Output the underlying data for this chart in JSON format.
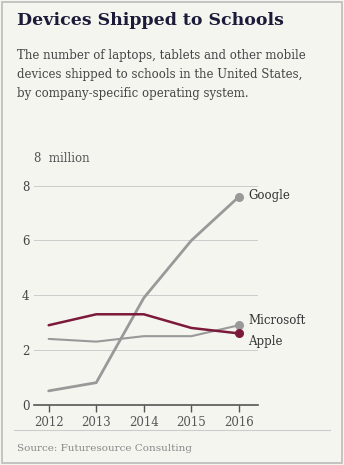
{
  "title": "Devices Shipped to Schools",
  "subtitle": "The number of laptops, tablets and other mobile\ndevices shipped to schools in the United States,\nby company-specific operating system.",
  "source": "Source: Futuresource Consulting",
  "years": [
    2012,
    2013,
    2014,
    2015,
    2016
  ],
  "google": [
    0.5,
    0.8,
    3.9,
    6.0,
    7.6
  ],
  "microsoft": [
    2.4,
    2.3,
    2.5,
    2.5,
    2.9
  ],
  "apple": [
    2.9,
    3.3,
    3.3,
    2.8,
    2.6
  ],
  "google_color": "#999999",
  "microsoft_color": "#999999",
  "apple_color": "#7b1a3a",
  "title_color": "#1c1c3a",
  "subtitle_color": "#444444",
  "source_color": "#888888",
  "bg_color": "#f5f5f0",
  "ylim": [
    0,
    8.5
  ],
  "yticks": [
    0,
    2,
    4,
    6,
    8
  ],
  "ylabel_top": "8  million"
}
